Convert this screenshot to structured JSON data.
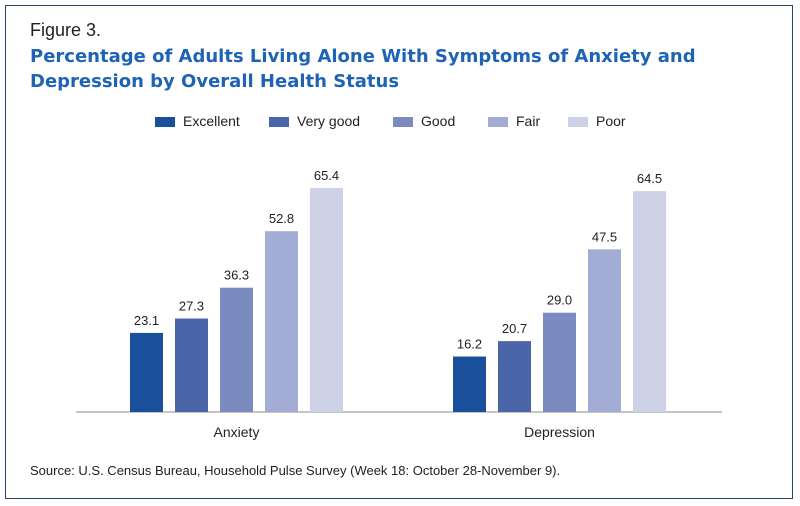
{
  "figure_label": "Figure 3.",
  "title": "Percentage of Adults Living Alone With Symptoms of Anxiety and Depression by Overall Health Status",
  "source": "Source: U.S. Census Bureau, Household Pulse Survey (Week 18: October 28-November 9).",
  "chart_data": {
    "type": "bar",
    "categories": [
      "Anxiety",
      "Depression"
    ],
    "series": [
      {
        "name": "Excellent",
        "color": "#1a4f9c",
        "values": [
          23.1,
          16.2
        ]
      },
      {
        "name": "Very good",
        "color": "#4a65a8",
        "values": [
          27.3,
          20.7
        ]
      },
      {
        "name": "Good",
        "color": "#7b8bc0",
        "values": [
          36.3,
          29.0
        ]
      },
      {
        "name": "Fair",
        "color": "#a3acd4",
        "values": [
          52.8,
          47.5
        ]
      },
      {
        "name": "Poor",
        "color": "#cdd2e6",
        "values": [
          65.4,
          64.5
        ]
      }
    ],
    "value_labels": [
      [
        "23.1",
        "16.2"
      ],
      [
        "27.3",
        "20.7"
      ],
      [
        "36.3",
        "29.0"
      ],
      [
        "52.8",
        "47.5"
      ],
      [
        "65.4",
        "64.5"
      ]
    ],
    "ylim": [
      0,
      66
    ],
    "grid": false,
    "legend_position": "top-center"
  }
}
